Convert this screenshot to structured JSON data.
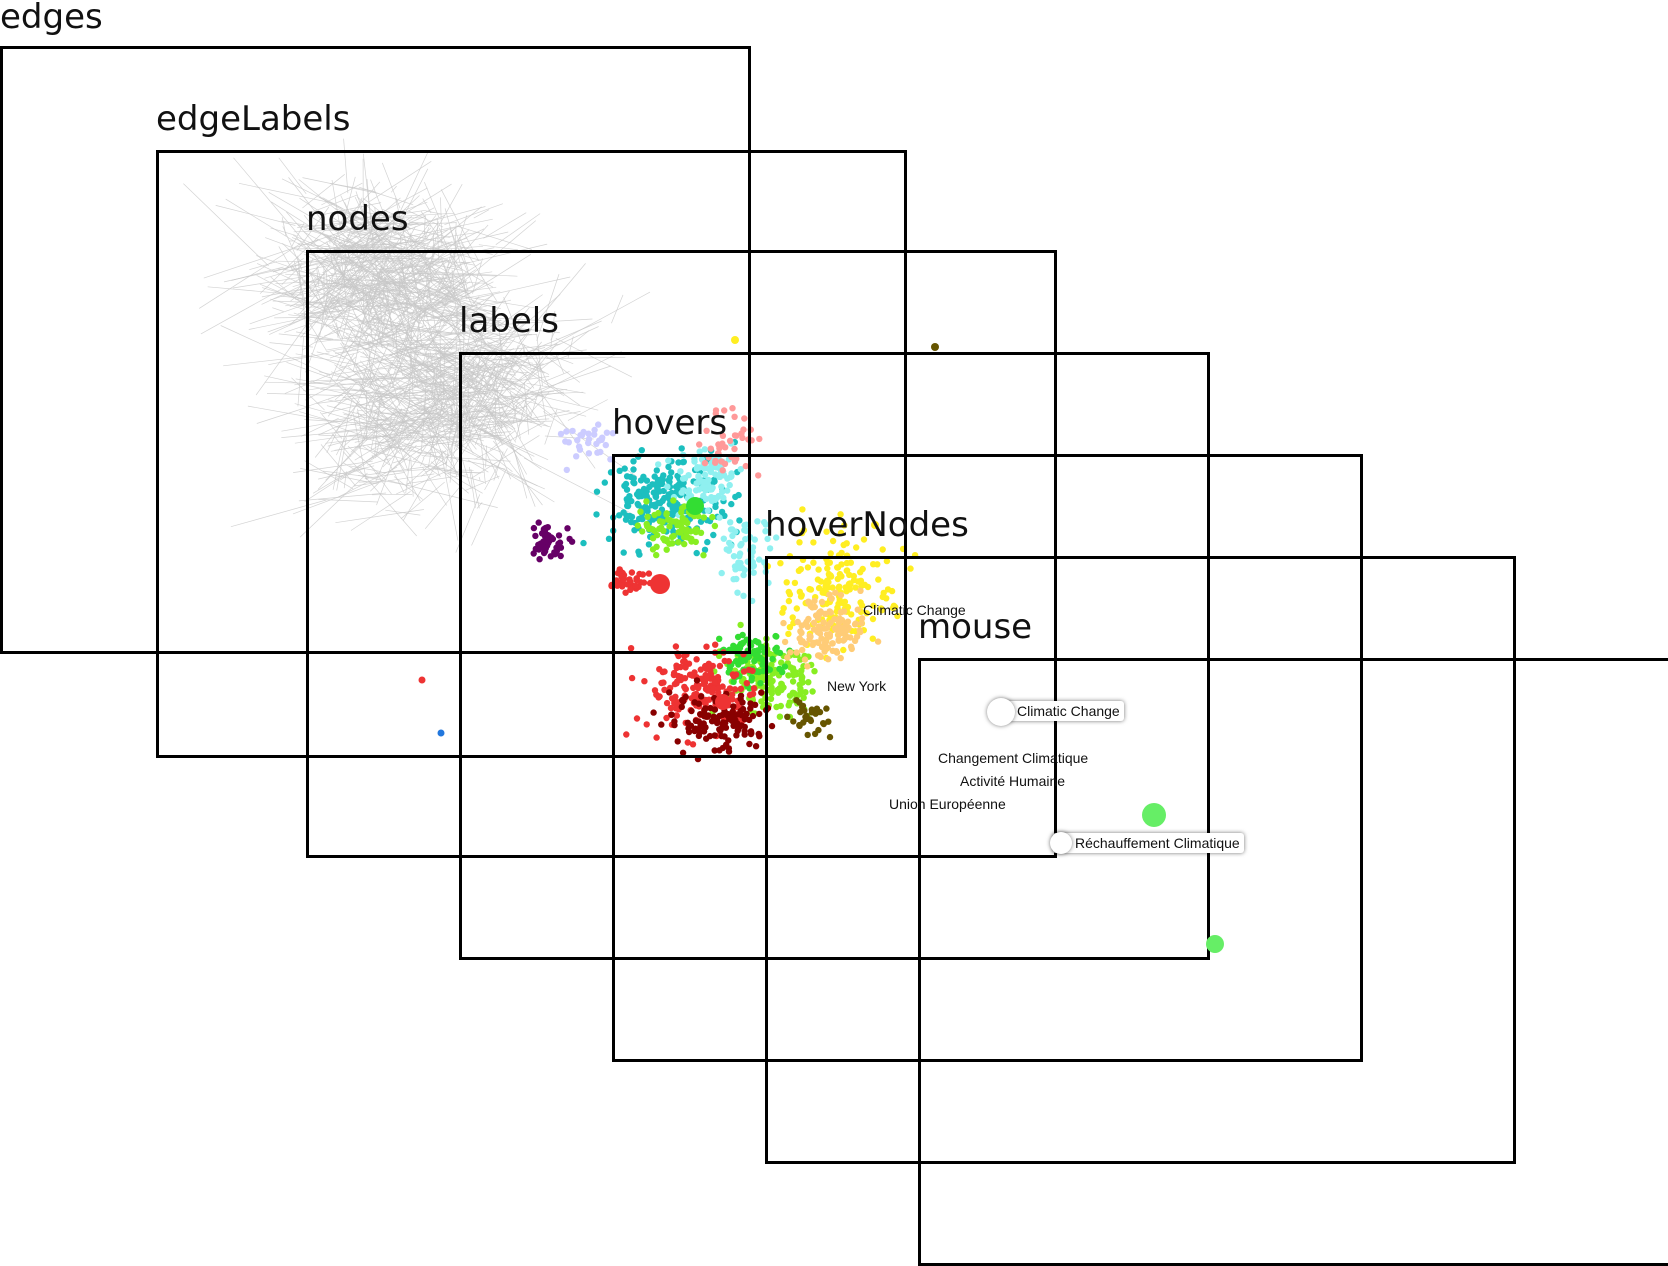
{
  "layers": [
    {
      "key": "edges",
      "title": "edges"
    },
    {
      "key": "edgeLabels",
      "title": "edgeLabels"
    },
    {
      "key": "nodes",
      "title": "nodes"
    },
    {
      "key": "labels",
      "title": "labels"
    },
    {
      "key": "hovers",
      "title": "hovers"
    },
    {
      "key": "hoverNodes",
      "title": "hoverNodes"
    },
    {
      "key": "mouse",
      "title": "mouse"
    }
  ],
  "labels": {
    "climatic_change": "Climatic Change",
    "new_york": "New York",
    "changement_climatique": "Changement Climatique",
    "activite_humaine": "Activité Humaine",
    "union_europeenne": "Union Européenne"
  },
  "hovers": {
    "climatic_change": "Climatic Change",
    "rechauffement_climatique": "Réchauffement Climatique"
  },
  "colors": {
    "frame": "#000000",
    "edge": "#c8c8c8",
    "hover_node": "#66ee66",
    "node_palette": [
      "#1cbfbf",
      "#8ff0f0",
      "#88ee22",
      "#33dd33",
      "#ee3333",
      "#880000",
      "#660066",
      "#ffee22",
      "#ffcc77",
      "#ff9999",
      "#ccccff",
      "#665500",
      "#118811",
      "#2277dd"
    ]
  }
}
